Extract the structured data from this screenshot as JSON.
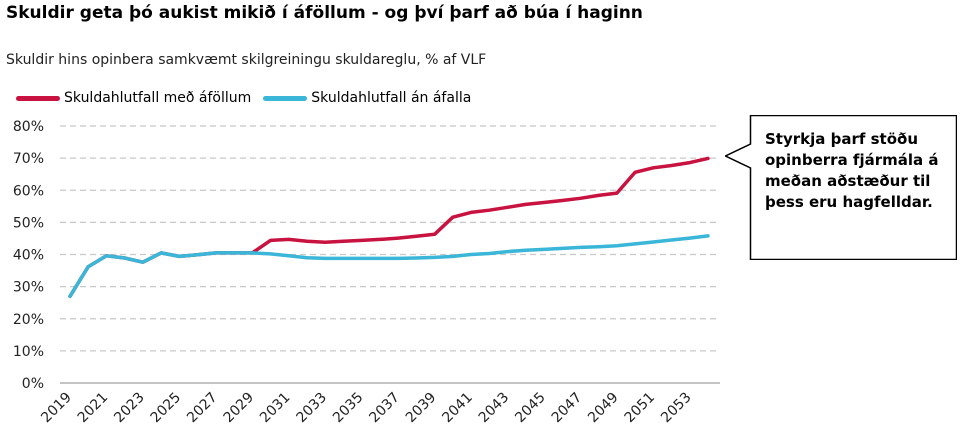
{
  "title": "Skuldir geta þó aukist mikið í áföllum - og því þarf að búa í haginn",
  "subtitle": "Skuldir hins opinbera samkvæmt skilgreiningu skuldareglu, % af VLF",
  "callout": "Styrkja þarf stöðu opinberra fjármála á meðan aðstæður til þess eru hagfelldar.",
  "colors": {
    "series1": "#c8123f",
    "series2": "#3ab6d8",
    "grid": "#c8c8c8"
  },
  "chart_data": {
    "type": "line",
    "title": "Skuldir geta þó aukist mikið í áföllum - og því þarf að búa í haginn",
    "subtitle": "Skuldir hins opinbera samkvæmt skilgreiningu skuldareglu, % af VLF",
    "xlabel": "",
    "ylabel": "",
    "ylim": [
      0,
      80
    ],
    "yticks": [
      "0%",
      "10%",
      "20%",
      "30%",
      "40%",
      "50%",
      "60%",
      "70%",
      "80%"
    ],
    "grid": true,
    "legend": "top-left",
    "x": [
      2019,
      2020,
      2021,
      2022,
      2023,
      2024,
      2025,
      2026,
      2027,
      2028,
      2029,
      2030,
      2031,
      2032,
      2033,
      2034,
      2035,
      2036,
      2037,
      2038,
      2039,
      2040,
      2041,
      2042,
      2043,
      2044,
      2045,
      2046,
      2047,
      2048,
      2049,
      2050,
      2051,
      2052,
      2053,
      2054
    ],
    "xtick_labels": [
      "2019",
      "2021",
      "2023",
      "2025",
      "2027",
      "2029",
      "2031",
      "2033",
      "2035",
      "2037",
      "2039",
      "2041",
      "2043",
      "2045",
      "2047",
      "2049",
      "2051",
      "2053"
    ],
    "series": [
      {
        "name": "Skuldahlutfall með áföllum",
        "color": "#c8123f",
        "values": [
          27,
          36.2,
          39.6,
          38.9,
          37.6,
          40.5,
          39.4,
          39.9,
          40.5,
          40.5,
          40.5,
          44.4,
          44.7,
          44.1,
          43.8,
          44.1,
          44.4,
          44.7,
          45.1,
          45.7,
          46.3,
          51.6,
          53.1,
          53.8,
          54.7,
          55.6,
          56.2,
          56.8,
          57.5,
          58.4,
          59.1,
          65.6,
          67,
          67.7,
          68.6,
          69.9
        ]
      },
      {
        "name": "Skuldahlutfall án áfalla",
        "color": "#3ab6d8",
        "values": [
          27,
          36.2,
          39.6,
          38.9,
          37.6,
          40.5,
          39.4,
          39.9,
          40.5,
          40.5,
          40.5,
          40.2,
          39.6,
          39.0,
          38.8,
          38.8,
          38.8,
          38.8,
          38.8,
          38.9,
          39.1,
          39.4,
          40.0,
          40.3,
          40.9,
          41.3,
          41.6,
          41.9,
          42.2,
          42.4,
          42.7,
          43.3,
          43.9,
          44.5,
          45.1,
          45.8
        ]
      }
    ]
  }
}
